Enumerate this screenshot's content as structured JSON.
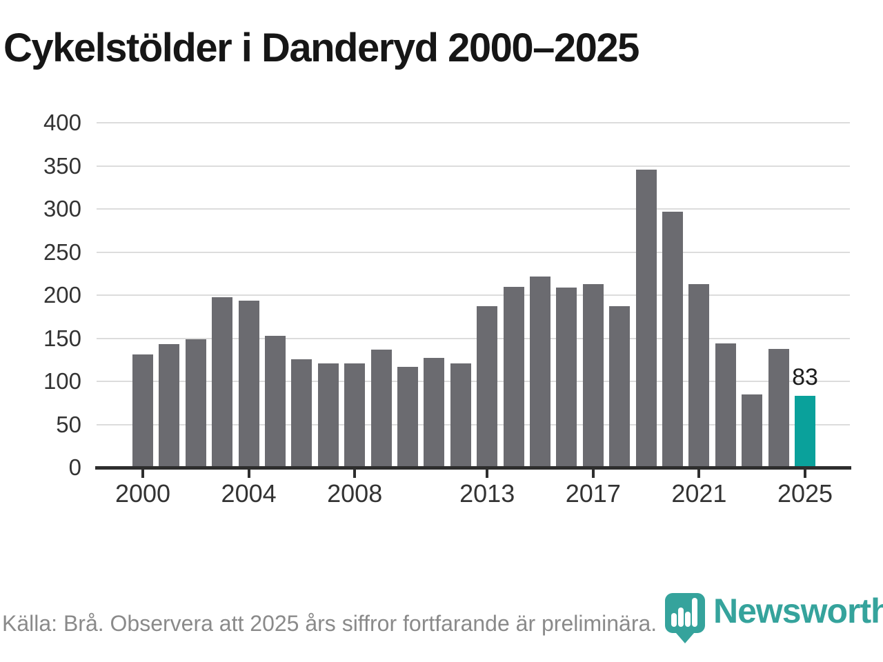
{
  "title": "Cykelstölder i Danderyd 2000–2025",
  "footer": {
    "source_note": "Källa: Brå. Observera att 2025 års siffror fortfarande är preliminära.",
    "brand": "Newsworthy"
  },
  "colors": {
    "bar": "#6b6b70",
    "highlight": "#0aa19b",
    "gridline": "#dcdcdc",
    "axis": "#2e2e2e",
    "title": "#161616",
    "tick_label": "#333333",
    "footer_text": "#8a8a8a",
    "logo": "#35a39c"
  },
  "chart_data": {
    "type": "bar",
    "title": "Cykelstölder i Danderyd 2000–2025",
    "categories": [
      2000,
      2001,
      2002,
      2003,
      2004,
      2005,
      2006,
      2007,
      2008,
      2009,
      2010,
      2011,
      2012,
      2013,
      2014,
      2015,
      2016,
      2017,
      2018,
      2019,
      2020,
      2021,
      2022,
      2023,
      2024,
      2025
    ],
    "values": [
      131,
      143,
      149,
      198,
      194,
      153,
      126,
      121,
      121,
      137,
      117,
      127,
      121,
      187,
      210,
      222,
      209,
      213,
      187,
      346,
      297,
      213,
      144,
      85,
      138,
      83
    ],
    "highlight_year": 2025,
    "highlight_value_label": "83",
    "xlabel": "",
    "ylabel": "",
    "ylim": [
      0,
      400
    ],
    "ytick_step": 50,
    "xticks": [
      2000,
      2004,
      2008,
      2013,
      2017,
      2021,
      2025
    ],
    "grid": true,
    "legend": false
  }
}
